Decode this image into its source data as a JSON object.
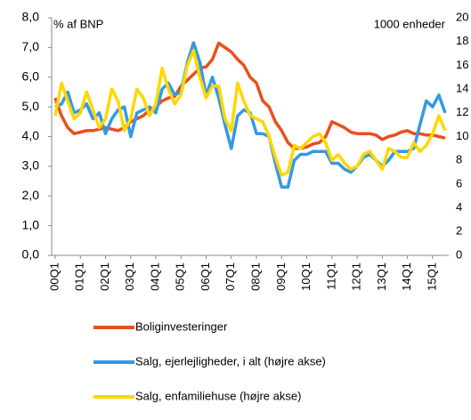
{
  "chart_data": {
    "type": "line",
    "y_label": "% af BNP",
    "y2_label": "1000 enheder",
    "categories": [
      "00Q1",
      null,
      null,
      null,
      "01Q1",
      null,
      null,
      null,
      "02Q1",
      null,
      null,
      null,
      "03Q1",
      null,
      null,
      null,
      "04Q1",
      null,
      null,
      null,
      "05Q1",
      null,
      null,
      null,
      "06Q1",
      null,
      null,
      null,
      "07Q1",
      null,
      null,
      null,
      "08Q1",
      null,
      null,
      null,
      "09Q1",
      null,
      null,
      null,
      "10Q1",
      null,
      null,
      null,
      "11Q1",
      null,
      null,
      null,
      "12Q1",
      null,
      null,
      null,
      "13Q1",
      null,
      null,
      null,
      "14Q1",
      null,
      null,
      null,
      "15Q1",
      null,
      null
    ],
    "ylim": [
      0,
      8
    ],
    "yticks": [
      {
        "value": 0,
        "label": "0,0"
      },
      {
        "value": 1,
        "label": "1,0"
      },
      {
        "value": 2,
        "label": "2,0"
      },
      {
        "value": 3,
        "label": "3,0"
      },
      {
        "value": 4,
        "label": "4,0"
      },
      {
        "value": 5,
        "label": "5,0"
      },
      {
        "value": 6,
        "label": "6,0"
      },
      {
        "value": 7,
        "label": "7,0"
      },
      {
        "value": 8,
        "label": "8,0"
      }
    ],
    "y2lim": [
      0,
      20
    ],
    "y2ticks": [
      0,
      2,
      4,
      6,
      8,
      10,
      12,
      14,
      16,
      18,
      20
    ],
    "series": [
      {
        "name": "Boliginvesteringer",
        "color": "#e8501e",
        "values": [
          5.3,
          4.7,
          4.3,
          4.1,
          4.15,
          4.2,
          4.2,
          4.25,
          4.3,
          4.25,
          4.2,
          4.3,
          4.5,
          4.6,
          4.7,
          4.9,
          5.0,
          5.2,
          5.3,
          5.35,
          5.7,
          5.9,
          6.1,
          6.3,
          6.35,
          6.6,
          7.15,
          7.0,
          6.85,
          6.6,
          6.4,
          6.0,
          5.8,
          5.2,
          5.0,
          4.5,
          4.2,
          3.8,
          3.6,
          3.6,
          3.65,
          3.75,
          3.8,
          4.0,
          4.5,
          4.4,
          4.3,
          4.15,
          4.1,
          4.1,
          4.1,
          4.05,
          3.9,
          4.0,
          4.05,
          4.15,
          4.2,
          4.1,
          4.1,
          4.05,
          4.05,
          4.0,
          3.95
        ]
      },
      {
        "name": "Salg, ejerlejligheder, i alt (højre akse)",
        "color": "#3399e6",
        "axis": "y2",
        "values": [
          12.5,
          12.75,
          13.75,
          12,
          12.25,
          12.75,
          11.5,
          12,
          10.25,
          11.5,
          12.25,
          12.5,
          10,
          12,
          12.25,
          12.5,
          12,
          14,
          14.5,
          13.5,
          13.75,
          16.25,
          17.9,
          16.25,
          13.5,
          15,
          13.25,
          11,
          9,
          11.75,
          12.25,
          12,
          10.25,
          10.25,
          10,
          7.75,
          5.75,
          5.75,
          8,
          8.5,
          8.5,
          8.75,
          8.75,
          8.75,
          7.75,
          7.75,
          7.25,
          7,
          7.5,
          8.25,
          8.5,
          8,
          7.5,
          8,
          8.75,
          8.75,
          8.75,
          9,
          11,
          13,
          12.5,
          13.5,
          12
        ]
      },
      {
        "name": "Salg, enfamiliehuse (højre akse)",
        "color": "#ffd700",
        "axis": "y2",
        "values": [
          11.75,
          14.5,
          13,
          11.5,
          12,
          13.75,
          12.25,
          10.75,
          11.5,
          14,
          13,
          10.5,
          11.5,
          14,
          13.25,
          11.75,
          12.75,
          15.75,
          14,
          12.75,
          13.5,
          16,
          17.25,
          15,
          13.25,
          14.25,
          14.25,
          11.5,
          10.5,
          14.5,
          13,
          11.75,
          11.5,
          11.25,
          10,
          8.25,
          6.75,
          7,
          9.25,
          9,
          9.5,
          10,
          10.25,
          9.5,
          8,
          8.5,
          7.75,
          7.25,
          7.5,
          8.5,
          8.75,
          8,
          7.25,
          9,
          8.75,
          8.25,
          8.25,
          9.5,
          8.75,
          9.25,
          10.25,
          11.75,
          10.5
        ]
      }
    ]
  }
}
